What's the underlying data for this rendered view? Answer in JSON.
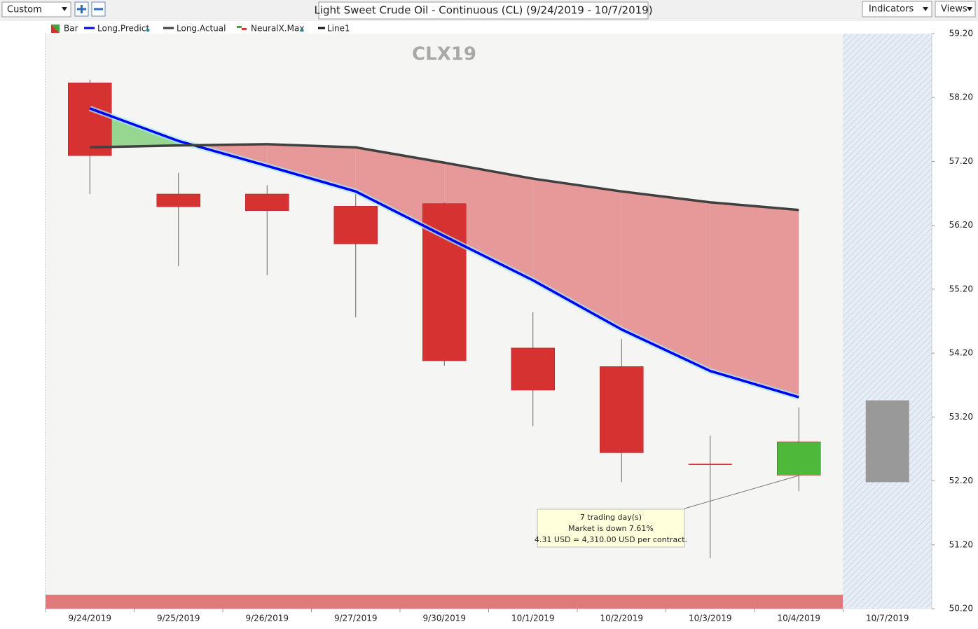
{
  "toolbar": {
    "view_select": "Custom",
    "title": "Light Sweet Crude Oil - Continuous (CL) (9/24/2019 - 10/7/2019)",
    "indicators": "Indicators",
    "views": "Views"
  },
  "chart_data": {
    "type": "candlestick",
    "title": "CLX19",
    "categories": [
      "9/24/2019",
      "9/25/2019",
      "9/26/2019",
      "9/27/2019",
      "9/30/2019",
      "10/1/2019",
      "10/2/2019",
      "10/3/2019",
      "10/4/2019",
      "10/7/2019"
    ],
    "open": [
      58.43,
      56.69,
      56.69,
      56.5,
      56.54,
      54.28,
      53.99,
      52.47,
      52.29,
      null
    ],
    "high": [
      58.48,
      57.02,
      56.83,
      56.7,
      56.56,
      54.84,
      54.42,
      52.91,
      53.35,
      null
    ],
    "low": [
      56.69,
      55.56,
      55.42,
      54.76,
      54.0,
      53.06,
      52.18,
      50.99,
      52.04,
      null
    ],
    "close": [
      57.29,
      56.49,
      56.43,
      55.91,
      54.08,
      53.62,
      52.64,
      52.47,
      52.81,
      null
    ],
    "up_color": "#4db83a",
    "down_color": "#d63232",
    "forecast": {
      "top": 53.46,
      "bottom": 52.18,
      "color": "#999999"
    },
    "series": [
      {
        "name": "Long.Predict",
        "color": "#0000ee",
        "values": [
          58.03,
          57.52,
          57.13,
          56.73,
          56.03,
          55.34,
          54.57,
          53.92,
          53.51,
          null
        ]
      },
      {
        "name": "Long.Actual",
        "color": "#404040",
        "values": [
          57.42,
          57.45,
          57.47,
          57.42,
          57.18,
          56.93,
          56.73,
          56.56,
          56.44,
          null
        ]
      }
    ],
    "fill_above_color": "#90d48a",
    "fill_below_color": "#e59492",
    "legend_items": [
      {
        "name": "Bar"
      },
      {
        "name": "NeuralX.Max"
      },
      {
        "name": "Line1"
      }
    ],
    "ylim": [
      50.2,
      59.2
    ],
    "yticks": [
      {
        "value": 50.2,
        "label": "50.20"
      },
      {
        "value": 51.2,
        "label": "51.20"
      },
      {
        "value": 52.2,
        "label": "52.20"
      },
      {
        "value": 53.2,
        "label": "53.20"
      },
      {
        "value": 54.2,
        "label": "54.20"
      },
      {
        "value": 55.2,
        "label": "55.20"
      },
      {
        "value": 56.2,
        "label": "56.20"
      },
      {
        "value": 57.2,
        "label": "57.20"
      },
      {
        "value": 58.2,
        "label": "58.20"
      },
      {
        "value": 59.2,
        "label": "59.20"
      }
    ],
    "annotation": [
      "7 trading day(s)",
      "Market is down 7.61%",
      "4.31 USD = 4,310.00 USD per contract."
    ]
  }
}
